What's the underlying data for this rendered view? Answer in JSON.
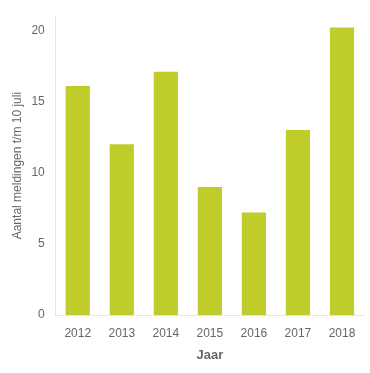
{
  "chart_data": {
    "type": "bar",
    "categories": [
      "2012",
      "2013",
      "2014",
      "2015",
      "2016",
      "2017",
      "2018"
    ],
    "values": [
      16.1,
      12.0,
      17.1,
      9.0,
      7.2,
      13.0,
      20.2
    ],
    "color": "#bfcc2a",
    "xlabel": "Jaar",
    "ylabel": "Aantal meldingen t/m 10 juli",
    "ylim": [
      0,
      21
    ],
    "yticks": [
      0,
      5,
      10,
      15,
      20
    ],
    "grid": false
  }
}
